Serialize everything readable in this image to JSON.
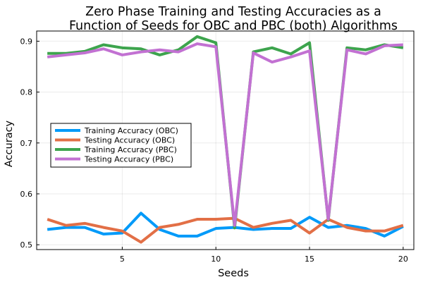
{
  "chart_data": {
    "type": "line",
    "title_lines": [
      "Zero Phase Training and Testing Accuracies as a",
      "Function of Seeds for OBC and PBC (both) Algorithms"
    ],
    "xlabel": "Seeds",
    "ylabel": "Accuracy",
    "xlim": [
      0.43,
      20.57
    ],
    "ylim": [
      0.4905,
      0.92
    ],
    "xticks": [
      5,
      10,
      15,
      20
    ],
    "yticks": [
      0.5,
      0.6,
      0.7,
      0.8,
      0.9
    ],
    "ytick_labels": [
      "0.5",
      "0.6",
      "0.7",
      "0.8",
      "0.9"
    ],
    "grid": true,
    "legend_position": "center-left",
    "x": [
      1,
      2,
      3,
      4,
      5,
      6,
      7,
      8,
      9,
      10,
      11,
      12,
      13,
      14,
      15,
      16,
      17,
      18,
      19,
      20
    ],
    "series": [
      {
        "name": "Training Accuracy (OBC)",
        "color": "#009af9",
        "values": [
          0.53,
          0.534,
          0.534,
          0.521,
          0.523,
          0.562,
          0.53,
          0.517,
          0.517,
          0.532,
          0.534,
          0.53,
          0.532,
          0.532,
          0.554,
          0.534,
          0.538,
          0.532,
          0.517,
          0.536
        ]
      },
      {
        "name": "Testing Accuracy (OBC)",
        "color": "#e26f46",
        "values": [
          0.55,
          0.538,
          0.542,
          0.534,
          0.527,
          0.505,
          0.534,
          0.54,
          0.55,
          0.55,
          0.552,
          0.534,
          0.542,
          0.548,
          0.523,
          0.55,
          0.534,
          0.527,
          0.527,
          0.538
        ]
      },
      {
        "name": "Training Accuracy (PBC)",
        "color": "#3da44d",
        "values": [
          0.876,
          0.876,
          0.88,
          0.893,
          0.887,
          0.885,
          0.873,
          0.883,
          0.909,
          0.897,
          0.533,
          0.879,
          0.887,
          0.875,
          0.897,
          0.548,
          0.887,
          0.883,
          0.893,
          0.887
        ]
      },
      {
        "name": "Testing Accuracy (PBC)",
        "color": "#c271d2",
        "values": [
          0.869,
          0.873,
          0.877,
          0.885,
          0.873,
          0.879,
          0.883,
          0.879,
          0.895,
          0.889,
          0.538,
          0.877,
          0.859,
          0.869,
          0.881,
          0.55,
          0.883,
          0.875,
          0.891,
          0.893
        ]
      }
    ]
  }
}
